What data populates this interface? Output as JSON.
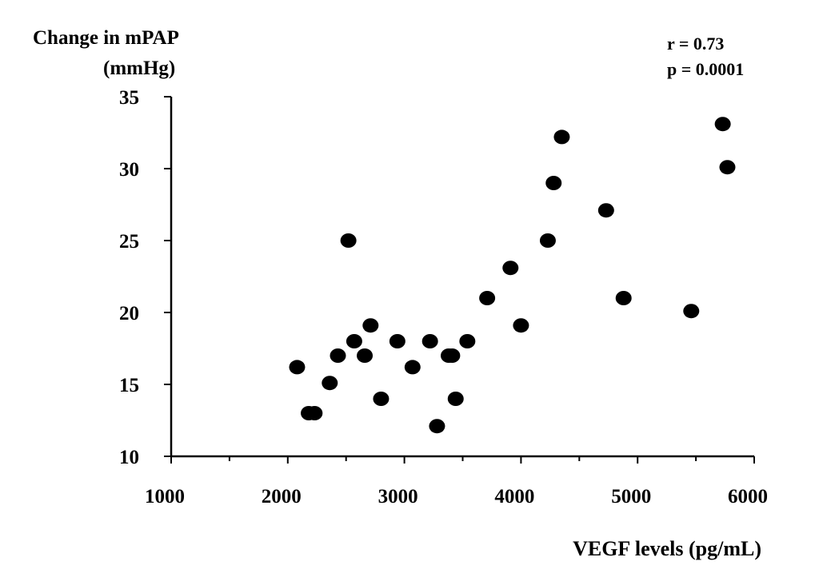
{
  "chart_data": {
    "type": "scatter",
    "ylabel_lines": [
      "Change in  mPAP",
      "(mmHg)"
    ],
    "xlabel": "VEGF levels (pg/mL)",
    "annotations": [
      "r = 0.73",
      "p = 0.0001"
    ],
    "xlim": [
      1000,
      6000
    ],
    "ylim": [
      10,
      35
    ],
    "xticks": [
      1000,
      2000,
      3000,
      4000,
      5000,
      6000
    ],
    "xticks_minor": [
      1500,
      2500,
      3500,
      4500,
      5500
    ],
    "yticks": [
      10,
      15,
      20,
      25,
      30,
      35
    ],
    "grid": false,
    "legend": "none",
    "points": [
      {
        "x": 2080,
        "y": 16.2
      },
      {
        "x": 2180,
        "y": 13.0
      },
      {
        "x": 2230,
        "y": 13.0
      },
      {
        "x": 2360,
        "y": 15.1
      },
      {
        "x": 2430,
        "y": 17.0
      },
      {
        "x": 2520,
        "y": 25.0
      },
      {
        "x": 2570,
        "y": 18.0
      },
      {
        "x": 2660,
        "y": 17.0
      },
      {
        "x": 2710,
        "y": 19.1
      },
      {
        "x": 2800,
        "y": 14.0
      },
      {
        "x": 2940,
        "y": 18.0
      },
      {
        "x": 3070,
        "y": 16.2
      },
      {
        "x": 3220,
        "y": 18.0
      },
      {
        "x": 3280,
        "y": 12.1
      },
      {
        "x": 3380,
        "y": 17.0
      },
      {
        "x": 3410,
        "y": 17.0
      },
      {
        "x": 3440,
        "y": 14.0
      },
      {
        "x": 3540,
        "y": 18.0
      },
      {
        "x": 3710,
        "y": 21.0
      },
      {
        "x": 3910,
        "y": 23.1
      },
      {
        "x": 4000,
        "y": 19.1
      },
      {
        "x": 4230,
        "y": 25.0
      },
      {
        "x": 4280,
        "y": 29.0
      },
      {
        "x": 4350,
        "y": 32.2
      },
      {
        "x": 4730,
        "y": 27.1
      },
      {
        "x": 4880,
        "y": 21.0
      },
      {
        "x": 5460,
        "y": 20.1
      },
      {
        "x": 5730,
        "y": 33.1
      },
      {
        "x": 5770,
        "y": 30.1
      }
    ]
  }
}
